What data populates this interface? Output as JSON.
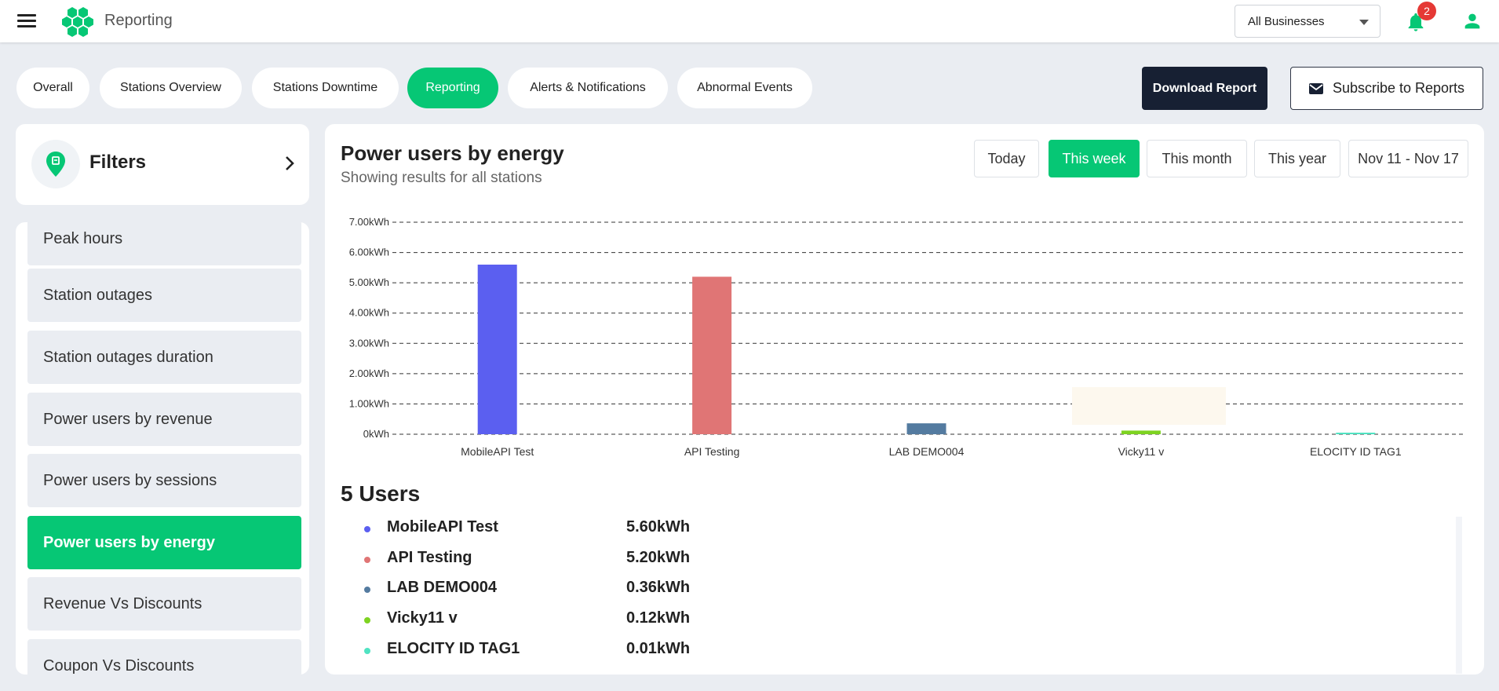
{
  "app": {
    "title": "Reporting"
  },
  "header": {
    "business_select": "All Businesses",
    "notification_count": "2"
  },
  "tabs": [
    {
      "label": "Overall",
      "active": false
    },
    {
      "label": "Stations Overview",
      "active": false
    },
    {
      "label": "Stations Downtime",
      "active": false
    },
    {
      "label": "Reporting",
      "active": true
    },
    {
      "label": "Alerts & Notifications",
      "active": false
    },
    {
      "label": "Abnormal Events",
      "active": false
    }
  ],
  "actions": {
    "download_label": "Download Report",
    "subscribe_label": "Subscribe to Reports"
  },
  "filters": {
    "label": "Filters"
  },
  "sidebar": {
    "items": [
      {
        "label": "Peak hours",
        "active": false
      },
      {
        "label": "Station outages",
        "active": false
      },
      {
        "label": "Station outages duration",
        "active": false
      },
      {
        "label": "Power users by revenue",
        "active": false
      },
      {
        "label": "Power users by sessions",
        "active": false
      },
      {
        "label": "Power users by energy",
        "active": true
      },
      {
        "label": "Revenue Vs Discounts",
        "active": false
      },
      {
        "label": "Coupon Vs Discounts",
        "active": false
      }
    ]
  },
  "main": {
    "title": "Power users by energy",
    "subtitle": "Showing results for all stations",
    "ranges": [
      {
        "label": "Today",
        "active": false
      },
      {
        "label": "This week",
        "active": true
      },
      {
        "label": "This month",
        "active": false
      },
      {
        "label": "This year",
        "active": false
      },
      {
        "label": "Nov 11 - Nov 17",
        "active": false
      }
    ],
    "users_heading": "5 Users",
    "users": [
      {
        "name": "MobileAPI Test",
        "value": "5.60kWh",
        "color": "#5b5ff0"
      },
      {
        "name": "API Testing",
        "value": "5.20kWh",
        "color": "#e07575"
      },
      {
        "name": "LAB DEMO004",
        "value": "0.36kWh",
        "color": "#547ba0"
      },
      {
        "name": "Vicky11 v",
        "value": "0.12kWh",
        "color": "#7ed321"
      },
      {
        "name": "ELOCITY ID TAG1",
        "value": "0.01kWh",
        "color": "#50e3c2"
      }
    ]
  },
  "colors": {
    "accent": "#06c775",
    "dark": "#172033",
    "badge": "#e53935"
  },
  "icons": {
    "menu": "menu-icon",
    "logo": "hexagon-cluster-logo",
    "notifications": "bell-icon",
    "user": "user-icon",
    "mail": "mail-icon",
    "filters": "location-pin-icon",
    "chevron": "chevron-right-icon"
  },
  "chart_data": {
    "type": "bar",
    "categories": [
      "MobileAPI Test",
      "API Testing",
      "LAB DEMO004",
      "Vicky11 v",
      "ELOCITY ID TAG1"
    ],
    "values": [
      5.6,
      5.2,
      0.36,
      0.12,
      0.01
    ],
    "colors": [
      "#5b5ff0",
      "#e07575",
      "#547ba0",
      "#7ed321",
      "#50e3c2"
    ],
    "unit": "kWh",
    "yticks": [
      "0kWh",
      "1.00kWh",
      "2.00kWh",
      "3.00kWh",
      "4.00kWh",
      "5.00kWh",
      "6.00kWh",
      "7.00kWh"
    ],
    "ylim": [
      0,
      7
    ],
    "grid": true,
    "grid_style": "dashed"
  }
}
